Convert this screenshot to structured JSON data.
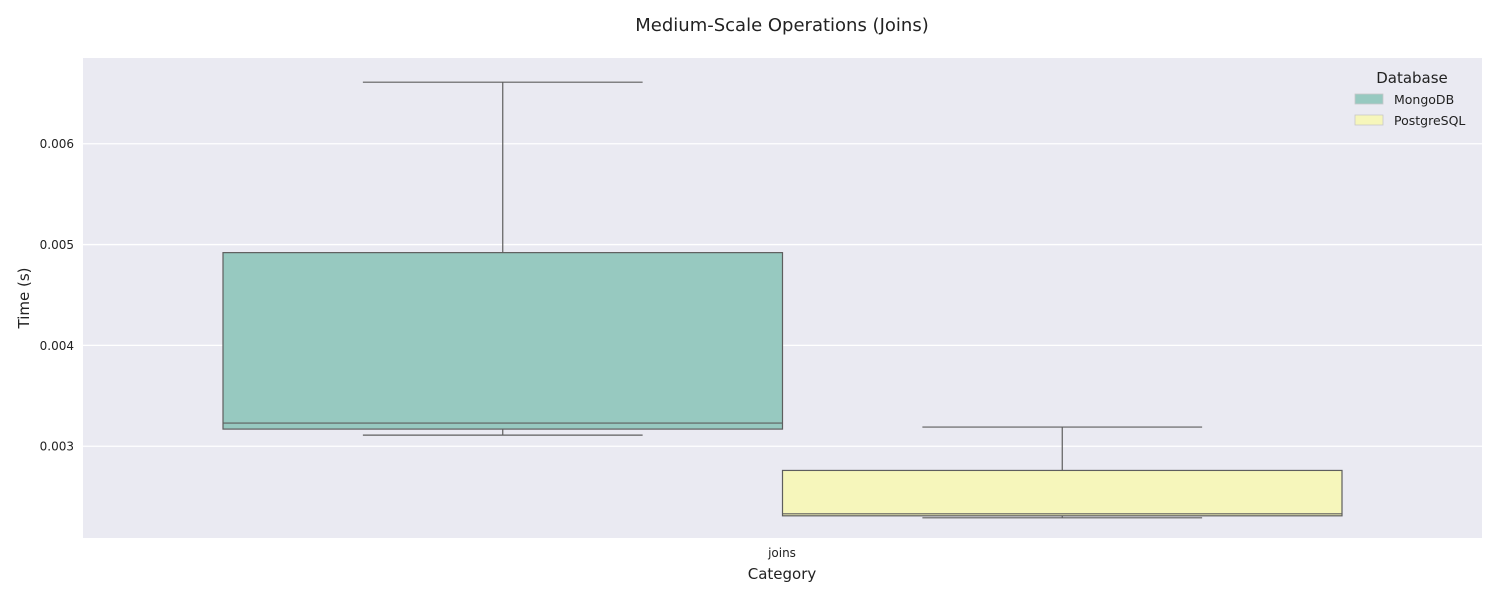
{
  "chart_data": {
    "type": "boxplot",
    "title": "Medium-Scale Operations (Joins)",
    "xlabel": "Category",
    "ylabel": "Time (s)",
    "categories": [
      "joins"
    ],
    "ylim": [
      0.00209,
      0.00685
    ],
    "yticks": [
      0.003,
      0.004,
      0.005,
      0.006
    ],
    "ytick_labels": [
      "0.003",
      "0.004",
      "0.005",
      "0.006"
    ],
    "grid": true,
    "legend": {
      "title": "Database",
      "position": "top-right",
      "entries": [
        "MongoDB",
        "PostgreSQL"
      ]
    },
    "series": [
      {
        "name": "MongoDB",
        "color": "#97c9c0",
        "stats": {
          "whisker_low": 0.00311,
          "q1": 0.00317,
          "median": 0.00323,
          "q3": 0.00492,
          "whisker_high": 0.00661
        }
      },
      {
        "name": "PostgreSQL",
        "color": "#f6f6bb",
        "stats": {
          "whisker_low": 0.00229,
          "q1": 0.00231,
          "median": 0.00233,
          "q3": 0.00276,
          "whisker_high": 0.00319
        }
      }
    ]
  },
  "colors": {
    "plot_background": "#eaeaf2",
    "grid": "#ffffff",
    "box_edge": "#5e5e5e"
  }
}
